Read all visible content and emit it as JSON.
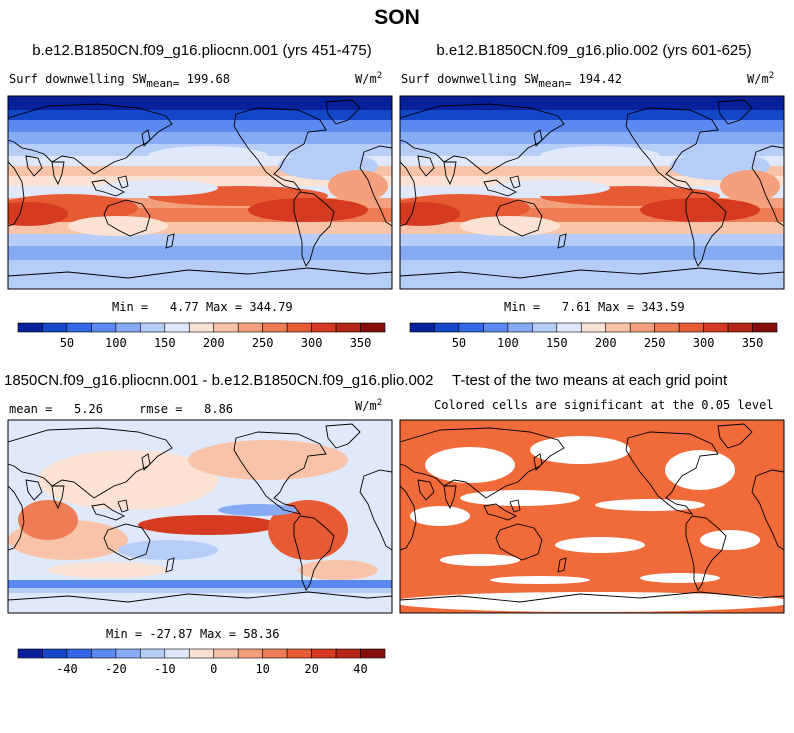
{
  "page_title": "SON",
  "palettes": {
    "sw": [
      "#08209a",
      "#1446c8",
      "#3268e6",
      "#5a8af0",
      "#86aaf4",
      "#b6cdf8",
      "#dfe9fb",
      "#fbe2d2",
      "#f8c3a8",
      "#f4a07c",
      "#ee7c55",
      "#e65a34",
      "#d53b20",
      "#b42615",
      "#860f0b"
    ],
    "diff": [
      "#08209a",
      "#1446c8",
      "#3268e6",
      "#5a8af0",
      "#86aaf4",
      "#b6cdf8",
      "#dfe9fb",
      "#fbe2d2",
      "#f8c3a8",
      "#f4a07c",
      "#ee7c55",
      "#e65a34",
      "#d53b20",
      "#b42615",
      "#860f0b"
    ],
    "sig": "#f06a3a"
  },
  "panels": [
    {
      "title": "b.e12.B1850CN.f09_g16.pliocnn.001 (yrs 451-475)",
      "field": "Surf downwelling SW",
      "mean_label": "mean=",
      "mean": "199.68",
      "units": "W/m",
      "units_sup": "2",
      "min_label": "Min =",
      "min": "4.77",
      "max_label": "Max =",
      "max": "344.79"
    },
    {
      "title": "b.e12.B1850CN.f09_g16.plio.002 (yrs 601-625)",
      "field": "Surf downwelling SW",
      "mean_label": "mean=",
      "mean": "194.42",
      "units": "W/m",
      "units_sup": "2",
      "min_label": "Min =",
      "min": "7.61",
      "max_label": "Max =",
      "max": "343.59"
    },
    {
      "title": "1850CN.f09_g16.pliocnn.001 - b.e12.B1850CN.f09_g16.plio.002",
      "mean_label": "mean =",
      "mean": "5.26",
      "rmse_label": "rmse =",
      "rmse": "8.86",
      "units": "W/m",
      "units_sup": "2",
      "min_label": "Min =",
      "min": "-27.87",
      "max_label": "Max =",
      "max": "58.36"
    },
    {
      "title": "T-test of the two means at each grid point",
      "subtitle": "Colored cells are significant at the 0.05 level"
    }
  ],
  "colorbars": [
    {
      "tick_labels": [
        "50",
        "100",
        "150",
        "200",
        "250",
        "300",
        "350"
      ]
    },
    {
      "tick_labels": [
        "50",
        "100",
        "150",
        "200",
        "250",
        "300",
        "350"
      ]
    },
    {
      "tick_labels": [
        "-40",
        "-20",
        "-10",
        "0",
        "10",
        "20",
        "40"
      ]
    }
  ],
  "chart_data": [
    {
      "type": "heatmap",
      "title": "b.e12.B1850CN.f09_g16.pliocnn.001 (yrs 451-475)",
      "variable": "Surf downwelling SW",
      "units": "W/m2",
      "mean": 199.68,
      "min": 4.77,
      "max": 344.79,
      "contour_levels": [
        25,
        50,
        75,
        100,
        125,
        150,
        175,
        200,
        225,
        250,
        275,
        300,
        325,
        350
      ]
    },
    {
      "type": "heatmap",
      "title": "b.e12.B1850CN.f09_g16.plio.002 (yrs 601-625)",
      "variable": "Surf downwelling SW",
      "units": "W/m2",
      "mean": 194.42,
      "min": 7.61,
      "max": 343.59,
      "contour_levels": [
        25,
        50,
        75,
        100,
        125,
        150,
        175,
        200,
        225,
        250,
        275,
        300,
        325,
        350
      ]
    },
    {
      "type": "heatmap",
      "title": "1850CN.f09_g16.pliocnn.001 - b.e12.B1850CN.f09_g16.plio.002",
      "units": "W/m2",
      "mean": 5.26,
      "rmse": 8.86,
      "min": -27.87,
      "max": 58.36,
      "contour_levels": [
        -50,
        -40,
        -30,
        -20,
        -15,
        -10,
        -5,
        0,
        5,
        10,
        15,
        20,
        30,
        40,
        50
      ]
    },
    {
      "type": "heatmap",
      "title": "T-test of the two means at each grid point",
      "subtitle": "Colored cells are significant at the 0.05 level",
      "significance_level": 0.05
    }
  ]
}
